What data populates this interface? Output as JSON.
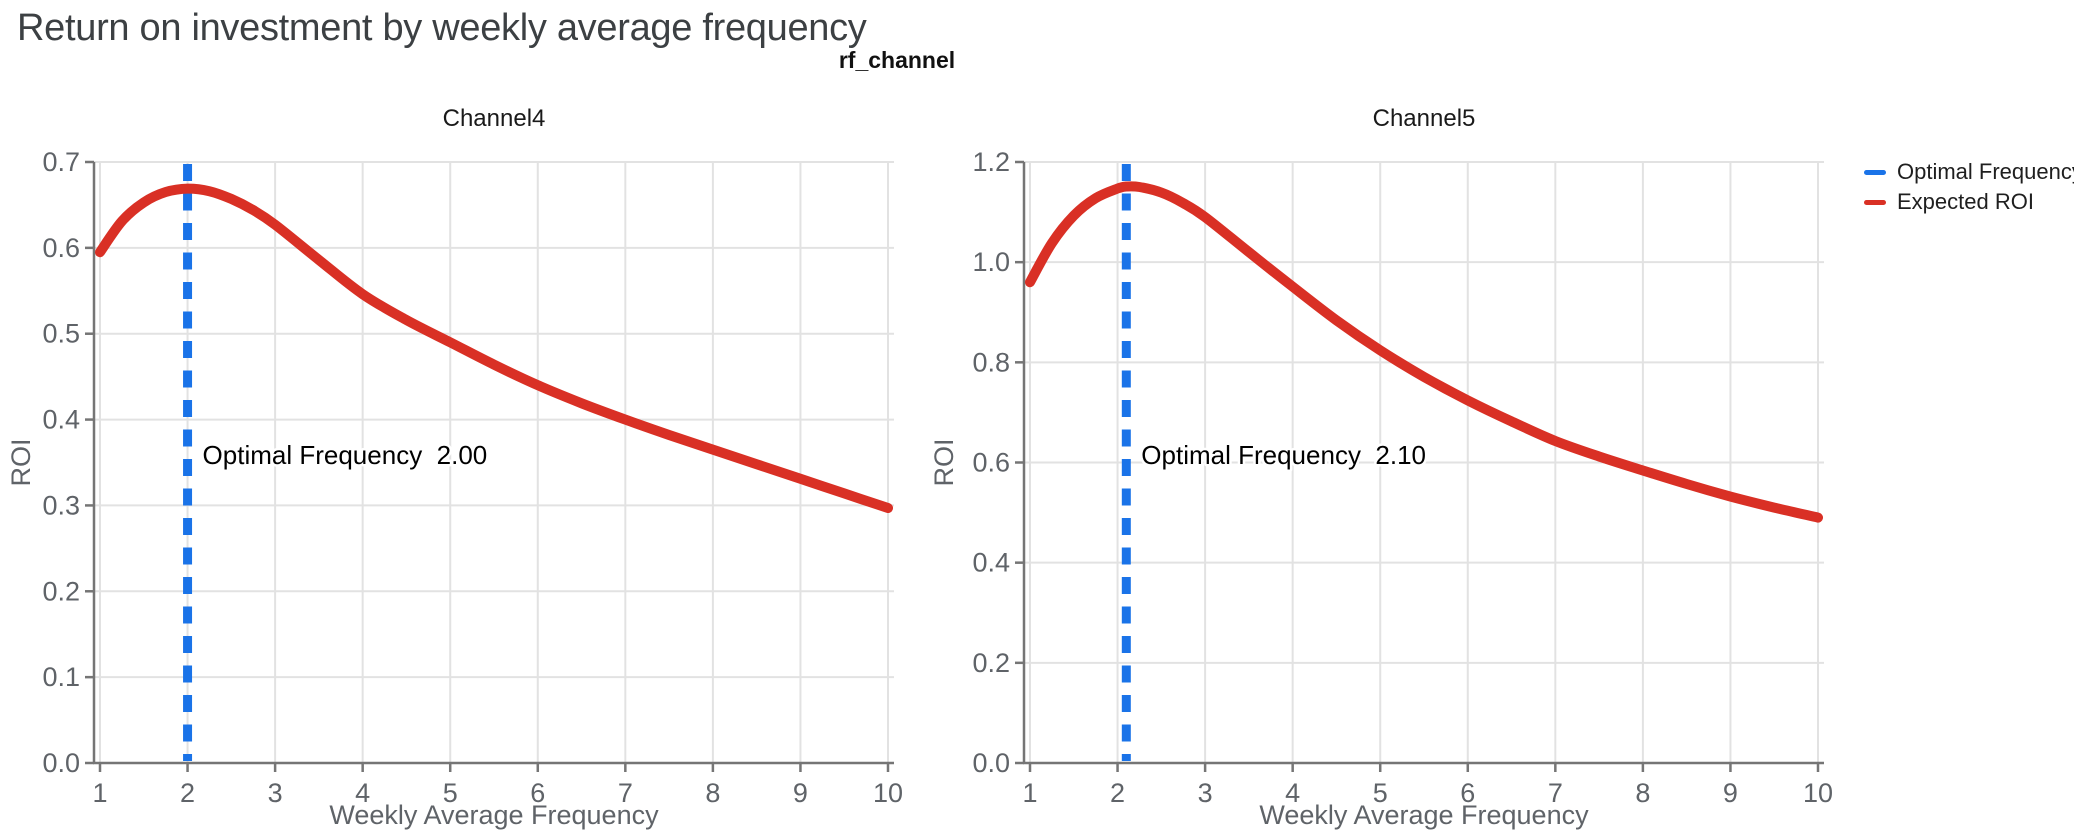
{
  "title": "Return on investment by weekly average frequency",
  "suptitle": "rf_channel",
  "legend": {
    "position": "right",
    "items": [
      {
        "label": "Optimal Frequency",
        "color": "#1a73e8",
        "swatch": "line"
      },
      {
        "label": "Expected ROI",
        "color": "#d93025",
        "swatch": "line"
      }
    ]
  },
  "colors": {
    "expected_roi_line": "#d93025",
    "optimal_frequency_line": "#1a73e8",
    "grid": "#e2e2e2",
    "axis": "#757575",
    "tick_label": "#5f6368",
    "chart_title": "#1a1a1a",
    "annotation_text": "#000000",
    "annotation_halo": "#ffffff",
    "page_title": "#3c4043"
  },
  "chart_data": [
    {
      "type": "line",
      "title": "Channel4",
      "xlabel": "Weekly Average Frequency",
      "ylabel": "ROI",
      "xlim": [
        1,
        10
      ],
      "ylim": [
        0,
        0.7
      ],
      "x_ticks": [
        1,
        2,
        3,
        4,
        5,
        6,
        7,
        8,
        9,
        10
      ],
      "y_ticks": [
        0.0,
        0.1,
        0.2,
        0.3,
        0.4,
        0.5,
        0.6,
        0.7
      ],
      "y_tick_decimals": 1,
      "grid": true,
      "optimal_frequency": 2.0,
      "annotation": {
        "label": "Optimal Frequency",
        "value": "2.00"
      },
      "series": [
        {
          "name": "Expected ROI",
          "color": "#d93025",
          "style": "solid",
          "x": [
            1,
            1.25,
            1.5,
            1.75,
            2,
            2.25,
            2.5,
            2.75,
            3,
            3.5,
            4,
            4.5,
            5,
            5.5,
            6,
            6.5,
            7,
            7.5,
            8,
            8.5,
            9,
            9.5,
            10
          ],
          "y": [
            0.595,
            0.631,
            0.653,
            0.665,
            0.669,
            0.666,
            0.657,
            0.644,
            0.627,
            0.586,
            0.546,
            0.516,
            0.49,
            0.464,
            0.44,
            0.419,
            0.4,
            0.382,
            0.365,
            0.348,
            0.331,
            0.314,
            0.297
          ]
        },
        {
          "name": "Optimal Frequency",
          "color": "#1a73e8",
          "style": "dashed-vertical",
          "x_value": 2.0
        }
      ]
    },
    {
      "type": "line",
      "title": "Channel5",
      "xlabel": "Weekly Average Frequency",
      "ylabel": "ROI",
      "xlim": [
        1,
        10
      ],
      "ylim": [
        0,
        1.2
      ],
      "x_ticks": [
        1,
        2,
        3,
        4,
        5,
        6,
        7,
        8,
        9,
        10
      ],
      "y_ticks": [
        0.0,
        0.2,
        0.4,
        0.6,
        0.8,
        1.0,
        1.2
      ],
      "y_tick_decimals": 1,
      "grid": true,
      "optimal_frequency": 2.1,
      "annotation": {
        "label": "Optimal Frequency",
        "value": "2.10"
      },
      "series": [
        {
          "name": "Expected ROI",
          "color": "#d93025",
          "style": "solid",
          "x": [
            1,
            1.25,
            1.5,
            1.75,
            2,
            2.1,
            2.25,
            2.5,
            2.75,
            3,
            3.5,
            4,
            4.5,
            5,
            5.5,
            6,
            6.5,
            7,
            7.5,
            8,
            8.5,
            9,
            9.5,
            10
          ],
          "y": [
            0.96,
            1.038,
            1.093,
            1.128,
            1.147,
            1.151,
            1.15,
            1.139,
            1.118,
            1.09,
            1.02,
            0.951,
            0.884,
            0.824,
            0.771,
            0.724,
            0.682,
            0.643,
            0.612,
            0.584,
            0.557,
            0.532,
            0.51,
            0.49
          ]
        },
        {
          "name": "Optimal Frequency",
          "color": "#1a73e8",
          "style": "dashed-vertical",
          "x_value": 2.1
        }
      ]
    }
  ]
}
